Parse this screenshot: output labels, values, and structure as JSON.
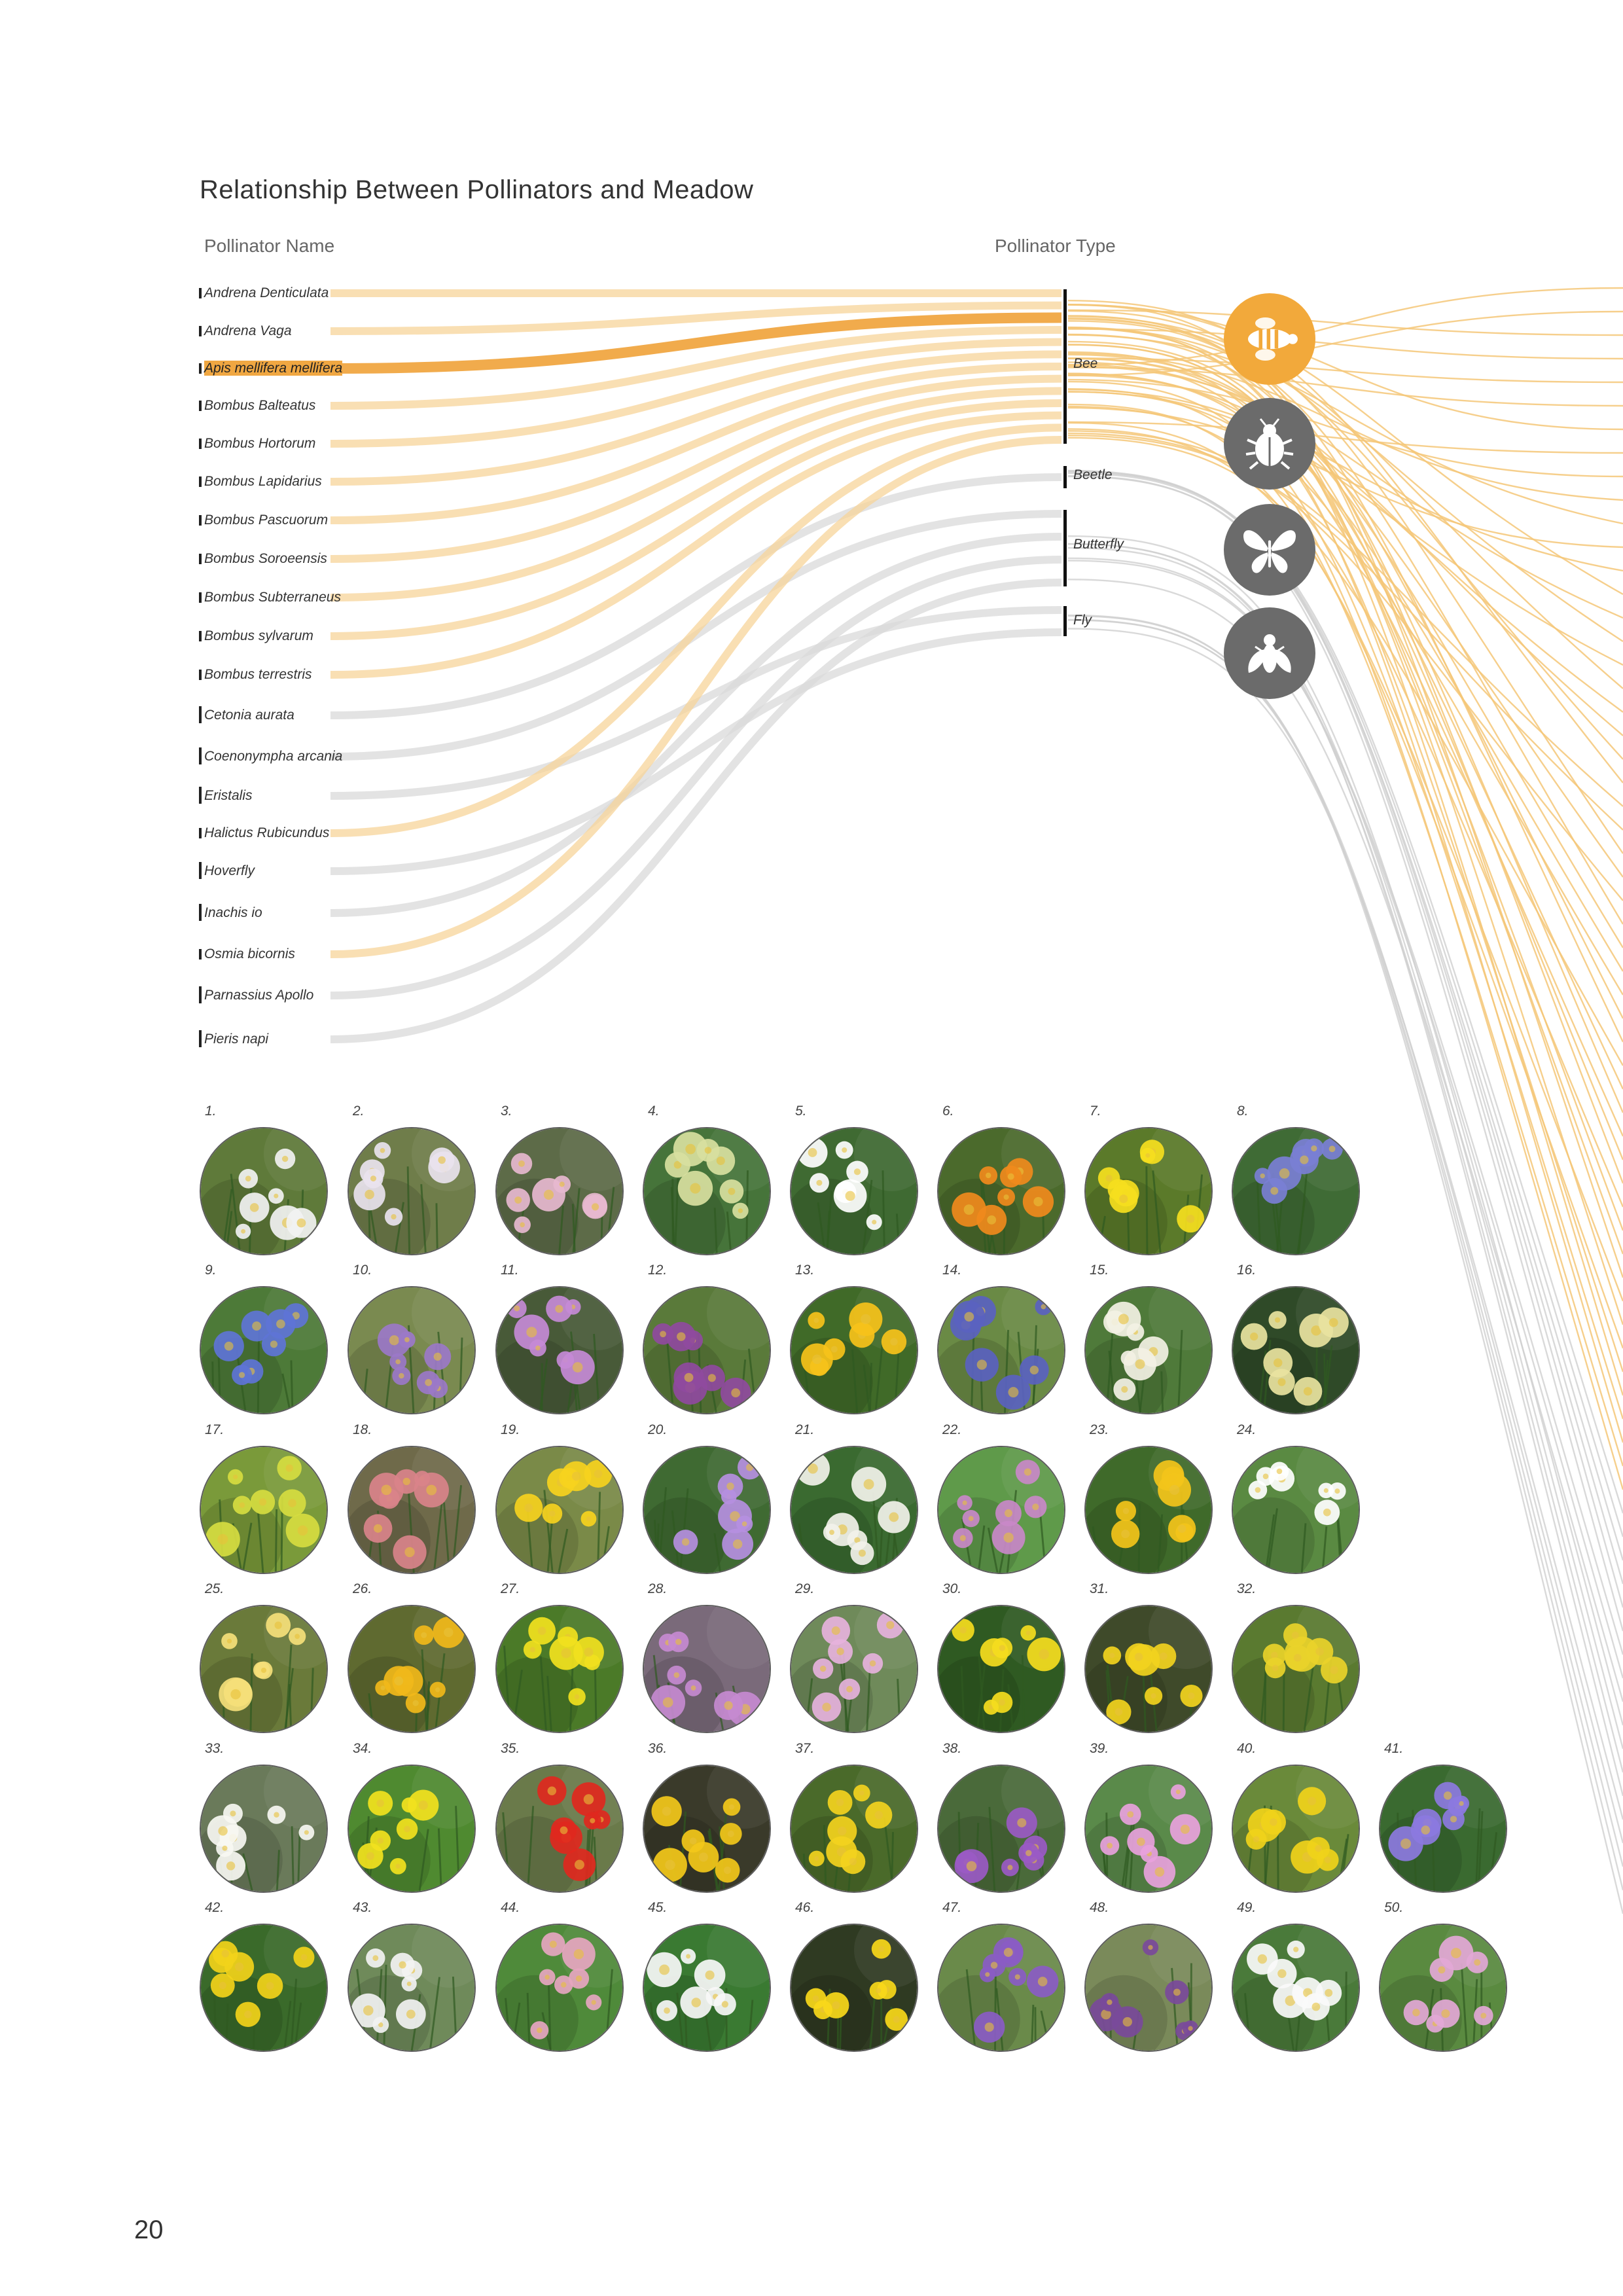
{
  "title": "Relationship Between Pollinators and Meadow",
  "headers": {
    "name": "Pollinator Name",
    "type": "Pollinator Type"
  },
  "colors": {
    "bee": "#f2a93b",
    "bee_flow": "#f7d49a",
    "highlight": "#f0a742",
    "other_flow": "#d9d9d9",
    "icon_grey": "#6b6b6b"
  },
  "pollinators": [
    {
      "name": "Andrena Denticulata",
      "type": "bee"
    },
    {
      "name": "Andrena Vaga",
      "type": "bee"
    },
    {
      "name": "Apis mellifera mellifera",
      "type": "bee",
      "highlight": true
    },
    {
      "name": "Bombus Balteatus",
      "type": "bee"
    },
    {
      "name": "Bombus Hortorum",
      "type": "bee"
    },
    {
      "name": "Bombus Lapidarius",
      "type": "bee"
    },
    {
      "name": "Bombus Pascuorum",
      "type": "bee"
    },
    {
      "name": "Bombus Soroeensis",
      "type": "bee"
    },
    {
      "name": "Bombus Subterraneus",
      "type": "bee"
    },
    {
      "name": "Bombus sylvarum",
      "type": "bee"
    },
    {
      "name": "Bombus terrestris",
      "type": "bee"
    },
    {
      "name": "Cetonia aurata",
      "type": "beetle"
    },
    {
      "name": "Coenonympha arcania",
      "type": "butterfly"
    },
    {
      "name": "Eristalis",
      "type": "fly"
    },
    {
      "name": "Halictus Rubicundus",
      "type": "bee"
    },
    {
      "name": "Hoverfly",
      "type": "fly"
    },
    {
      "name": "Inachis io",
      "type": "butterfly"
    },
    {
      "name": "Osmia bicornis",
      "type": "bee"
    },
    {
      "name": "Parnassius Apollo",
      "type": "butterfly"
    },
    {
      "name": "Pieris napi",
      "type": "butterfly"
    }
  ],
  "types": [
    {
      "key": "bee",
      "label": "Bee",
      "icon": "bee-icon"
    },
    {
      "key": "beetle",
      "label": "Beetle",
      "icon": "beetle-icon"
    },
    {
      "key": "butterfly",
      "label": "Butterfly",
      "icon": "butterfly-icon"
    },
    {
      "key": "fly",
      "label": "Fly",
      "icon": "fly-icon"
    }
  ],
  "flowers": [
    {
      "n": "1.",
      "c": "#f2f2f2",
      "bg": "#5f7a3a"
    },
    {
      "n": "2.",
      "c": "#e9e3ee",
      "bg": "#6f7d4a"
    },
    {
      "n": "3.",
      "c": "#e7b8cf",
      "bg": "#5d6b48"
    },
    {
      "n": "4.",
      "c": "#d8dfa0",
      "bg": "#46743a"
    },
    {
      "n": "5.",
      "c": "#ffffff",
      "bg": "#3f6a32"
    },
    {
      "n": "6.",
      "c": "#f08a1c",
      "bg": "#4b6a2c"
    },
    {
      "n": "7.",
      "c": "#f5de1e",
      "bg": "#5b7a2a"
    },
    {
      "n": "8.",
      "c": "#7a7fd4",
      "bg": "#3f6b35"
    },
    {
      "n": "9.",
      "c": "#5e74d6",
      "bg": "#4d7a38"
    },
    {
      "n": "10.",
      "c": "#9b78c8",
      "bg": "#7a8a50"
    },
    {
      "n": "11.",
      "c": "#c58ad6",
      "bg": "#485a38"
    },
    {
      "n": "12.",
      "c": "#8f4a9e",
      "bg": "#5a7a3a"
    },
    {
      "n": "13.",
      "c": "#f6c21a",
      "bg": "#406a28"
    },
    {
      "n": "14.",
      "c": "#5a62c0",
      "bg": "#6a8a45"
    },
    {
      "n": "15.",
      "c": "#f3f1e4",
      "bg": "#4f7a3a"
    },
    {
      "n": "16.",
      "c": "#e9e3a0",
      "bg": "#2f4a28"
    },
    {
      "n": "17.",
      "c": "#d6dc40",
      "bg": "#7a9a3a"
    },
    {
      "n": "18.",
      "c": "#d9838a",
      "bg": "#6f6a4a"
    },
    {
      "n": "19.",
      "c": "#f6d21e",
      "bg": "#7a8a48"
    },
    {
      "n": "20.",
      "c": "#b58fe0",
      "bg": "#3f6a32"
    },
    {
      "n": "21.",
      "c": "#f2f2ea",
      "bg": "#3a6a30"
    },
    {
      "n": "22.",
      "c": "#c988c8",
      "bg": "#5f9a4a"
    },
    {
      "n": "23.",
      "c": "#f3c41a",
      "bg": "#3f6a2a"
    },
    {
      "n": "24.",
      "c": "#ffffff",
      "bg": "#5a8a42"
    },
    {
      "n": "25.",
      "c": "#f5e07a",
      "bg": "#6a7a3a"
    },
    {
      "n": "26.",
      "c": "#f1b81a",
      "bg": "#5f6a30"
    },
    {
      "n": "27.",
      "c": "#f1e11e",
      "bg": "#4b7a28"
    },
    {
      "n": "28.",
      "c": "#c58ad0",
      "bg": "#7a6a7a"
    },
    {
      "n": "29.",
      "c": "#e6b2dc",
      "bg": "#6f8a5a"
    },
    {
      "n": "30.",
      "c": "#f5dc1e",
      "bg": "#2f5a22"
    },
    {
      "n": "31.",
      "c": "#f2d21e",
      "bg": "#3f4a2a"
    },
    {
      "n": "32.",
      "c": "#e9d22a",
      "bg": "#5a7a30"
    },
    {
      "n": "33.",
      "c": "#f7f7f2",
      "bg": "#6a7a5a"
    },
    {
      "n": "34.",
      "c": "#f2e21e",
      "bg": "#4f8a30"
    },
    {
      "n": "35.",
      "c": "#e0281e",
      "bg": "#6a7a4a"
    },
    {
      "n": "36.",
      "c": "#f3c81a",
      "bg": "#3a3a2a"
    },
    {
      "n": "37.",
      "c": "#f3d21e",
      "bg": "#4a6a2a"
    },
    {
      "n": "38.",
      "c": "#9a5ac4",
      "bg": "#4a6a3a"
    },
    {
      "n": "39.",
      "c": "#e8a2dc",
      "bg": "#5a8a4a"
    },
    {
      "n": "40.",
      "c": "#f0d21a",
      "bg": "#6a8a3a"
    },
    {
      "n": "41.",
      "c": "#8c7ae0",
      "bg": "#3a6a30"
    },
    {
      "n": "42.",
      "c": "#f2d21a",
      "bg": "#3a6a2a"
    },
    {
      "n": "43.",
      "c": "#f2f2f2",
      "bg": "#6f8a5a"
    },
    {
      "n": "44.",
      "c": "#e6a6c0",
      "bg": "#4f8a3a"
    },
    {
      "n": "45.",
      "c": "#f7f7f7",
      "bg": "#3a7a32"
    },
    {
      "n": "46.",
      "c": "#f8d81a",
      "bg": "#2f3a22"
    },
    {
      "n": "47.",
      "c": "#8a5cc4",
      "bg": "#6a8a4a"
    },
    {
      "n": "48.",
      "c": "#7a4a9a",
      "bg": "#7a8a5a"
    },
    {
      "n": "49.",
      "c": "#fafafa",
      "bg": "#4a7a3a"
    },
    {
      "n": "50.",
      "c": "#e3a8d6",
      "bg": "#5a8a40"
    }
  ],
  "page_number": "20"
}
